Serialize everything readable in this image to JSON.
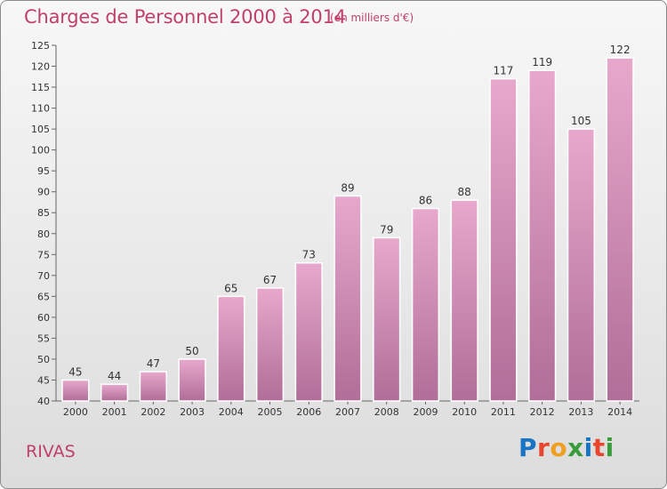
{
  "header": {
    "title": "Charges de Personnel 2000 à 2014",
    "subtitle": "(en milliers d'€)"
  },
  "footer": {
    "commune": "RIVAS",
    "logo_text": "Proxiti",
    "logo_colors": [
      "#1a74c4",
      "#e8452c",
      "#f0a020",
      "#3a9b3a",
      "#1a74c4",
      "#e8452c",
      "#3a9b3a"
    ]
  },
  "colors": {
    "accent": "#c0406a",
    "bar_top": "#e8a8cc",
    "bar_bottom": "#b06e98",
    "bar_edge": "#ffffff"
  },
  "chart_data": {
    "type": "bar",
    "title": "Charges de Personnel 2000 à 2014",
    "subtitle": "(en milliers d'€)",
    "categories": [
      "2000",
      "2001",
      "2002",
      "2003",
      "2004",
      "2005",
      "2006",
      "2007",
      "2008",
      "2009",
      "2010",
      "2011",
      "2012",
      "2013",
      "2014"
    ],
    "values": [
      45,
      44,
      47,
      50,
      65,
      67,
      73,
      89,
      79,
      86,
      88,
      117,
      119,
      105,
      122
    ],
    "ylim": [
      40,
      125
    ],
    "yticks": [
      40,
      45,
      50,
      55,
      60,
      65,
      70,
      75,
      80,
      85,
      90,
      95,
      100,
      105,
      110,
      115,
      120,
      125
    ],
    "grid": false,
    "data_labels": true
  }
}
